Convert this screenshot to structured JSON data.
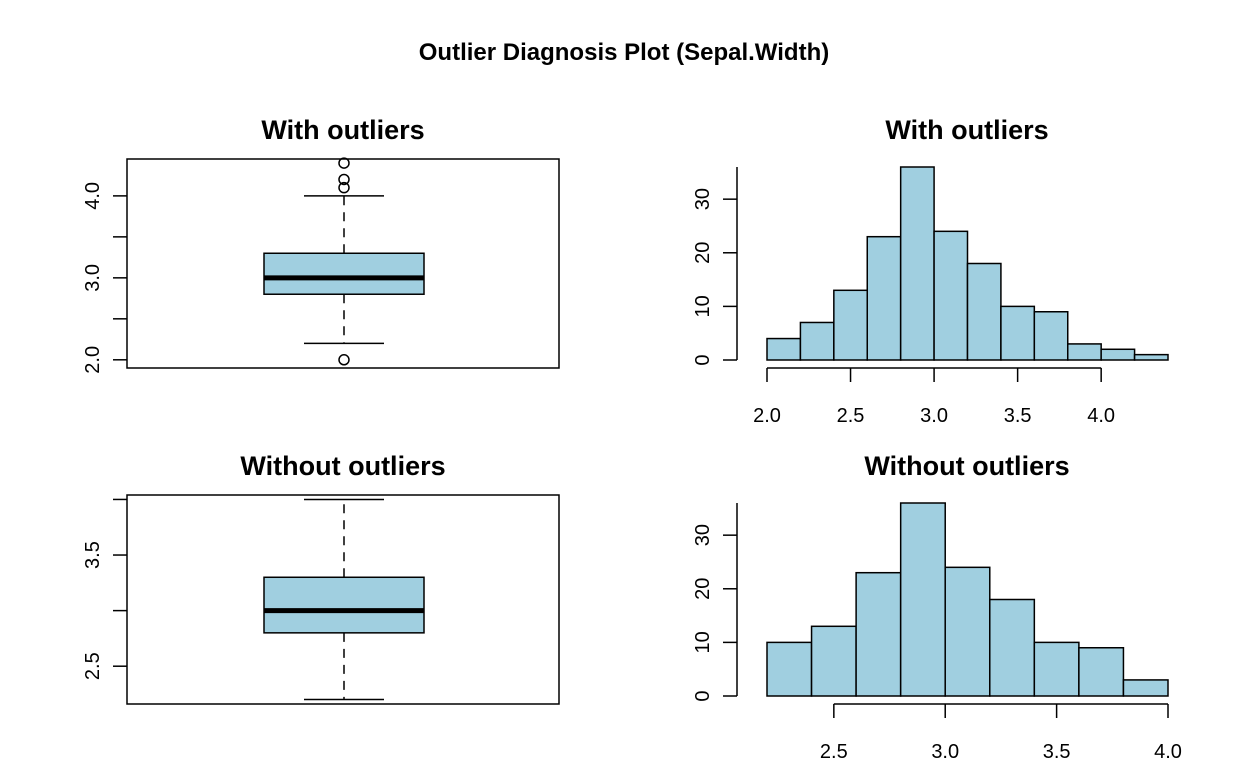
{
  "title": "Outlier Diagnosis Plot (Sepal.Width)",
  "colors": {
    "fill": "#A0CFE0",
    "stroke": "#000000",
    "background": "#FFFFFF"
  },
  "chart_data": [
    {
      "type": "box",
      "title": "With outliers",
      "ylim": [
        1.9,
        4.45
      ],
      "yticks": [
        2.0,
        2.5,
        3.0,
        3.5,
        4.0
      ],
      "ytick_labels": [
        "2.0",
        "",
        "3.0",
        "",
        "4.0"
      ],
      "stats": {
        "lower_whisker": 2.2,
        "q1": 2.8,
        "median": 3.0,
        "q3": 3.3,
        "upper_whisker": 4.0
      },
      "outliers": [
        4.1,
        4.2,
        4.4,
        2.0
      ]
    },
    {
      "type": "bar",
      "title": "With outliers",
      "bins": [
        2.0,
        2.2,
        2.4,
        2.6,
        2.8,
        3.0,
        3.2,
        3.4,
        3.6,
        3.8,
        4.0,
        4.2,
        4.4
      ],
      "counts": [
        4,
        7,
        13,
        23,
        36,
        24,
        18,
        10,
        9,
        3,
        2,
        1
      ],
      "xticks": [
        2.0,
        2.5,
        3.0,
        3.5,
        4.0
      ],
      "xtick_labels": [
        "2.0",
        "2.5",
        "3.0",
        "3.5",
        "4.0"
      ],
      "yticks": [
        0,
        10,
        20,
        30
      ],
      "ytick_labels": [
        "0",
        "10",
        "20",
        "30"
      ],
      "ylim": [
        0,
        36
      ]
    },
    {
      "type": "box",
      "title": "Without outliers",
      "ylim": [
        2.16,
        4.04
      ],
      "yticks": [
        2.5,
        3.0,
        3.5,
        4.0
      ],
      "ytick_labels": [
        "2.5",
        "",
        "3.5",
        ""
      ],
      "stats": {
        "lower_whisker": 2.2,
        "q1": 2.8,
        "median": 3.0,
        "q3": 3.3,
        "upper_whisker": 4.0
      },
      "outliers": []
    },
    {
      "type": "bar",
      "title": "Without outliers",
      "bins": [
        2.2,
        2.4,
        2.6,
        2.8,
        3.0,
        3.2,
        3.4,
        3.6,
        3.8,
        4.0
      ],
      "counts": [
        10,
        13,
        23,
        36,
        24,
        18,
        10,
        9,
        3
      ],
      "xticks": [
        2.5,
        3.0,
        3.5,
        4.0
      ],
      "xtick_labels": [
        "2.5",
        "3.0",
        "3.5",
        "4.0"
      ],
      "yticks": [
        0,
        10,
        20,
        30
      ],
      "ytick_labels": [
        "0",
        "10",
        "20",
        "30"
      ],
      "ylim": [
        0,
        36
      ]
    }
  ]
}
